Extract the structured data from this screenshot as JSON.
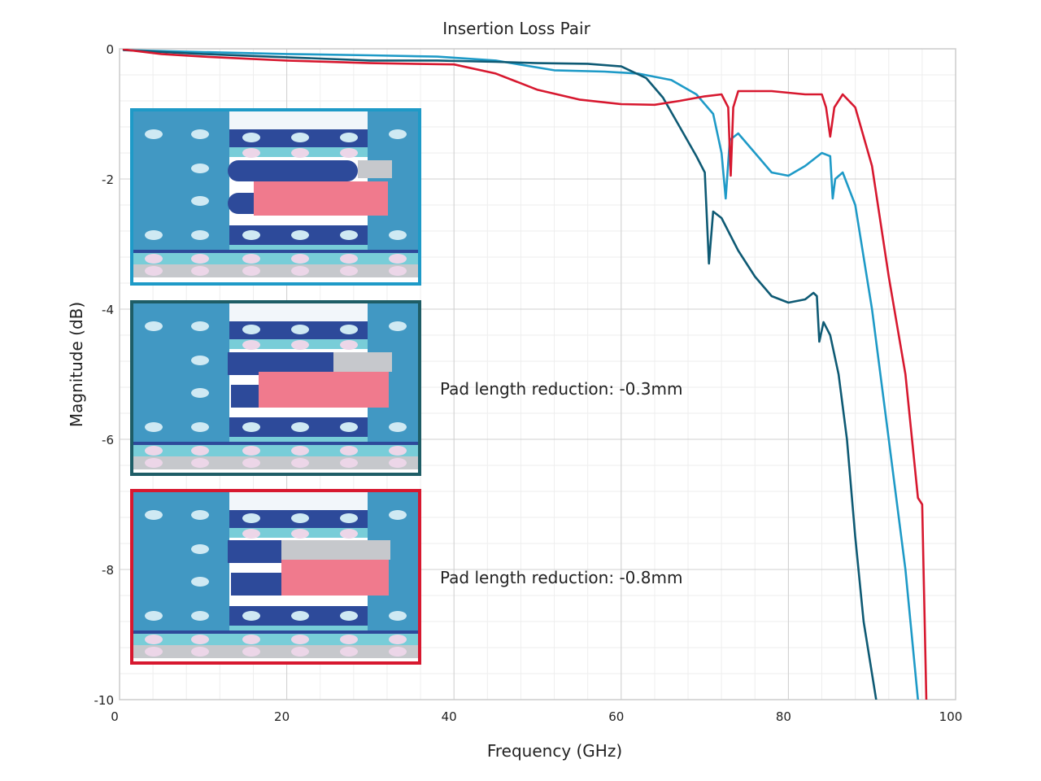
{
  "chart_data": {
    "type": "line",
    "title": "Insertion Loss Pair",
    "xlabel": "Frequency (GHz)",
    "ylabel": "Magnitude (dB)",
    "xlim": [
      0,
      100
    ],
    "ylim": [
      -10,
      0
    ],
    "x_ticks": [
      0,
      20,
      40,
      60,
      80,
      100
    ],
    "y_ticks": [
      0,
      -2,
      -4,
      -6,
      -8,
      -10
    ],
    "grid": true,
    "legend": "none",
    "series": [
      {
        "color": "#1e9ac7",
        "points": [
          [
            0.5,
            -0.02
          ],
          [
            10,
            -0.05
          ],
          [
            20,
            -0.08
          ],
          [
            30,
            -0.1
          ],
          [
            38,
            -0.12
          ],
          [
            45,
            -0.18
          ],
          [
            52,
            -0.33
          ],
          [
            58,
            -0.35
          ],
          [
            62,
            -0.38
          ],
          [
            66,
            -0.48
          ],
          [
            69,
            -0.7
          ],
          [
            71,
            -1.0
          ],
          [
            72,
            -1.6
          ],
          [
            72.5,
            -2.3
          ],
          [
            73,
            -1.4
          ],
          [
            74,
            -1.3
          ],
          [
            76,
            -1.6
          ],
          [
            78,
            -1.9
          ],
          [
            80,
            -1.95
          ],
          [
            82,
            -1.8
          ],
          [
            84,
            -1.6
          ],
          [
            85,
            -1.65
          ],
          [
            85.3,
            -2.3
          ],
          [
            85.6,
            -2.0
          ],
          [
            86.5,
            -1.9
          ],
          [
            88,
            -2.4
          ],
          [
            90,
            -4.0
          ],
          [
            92,
            -6.0
          ],
          [
            94,
            -8.0
          ],
          [
            95.5,
            -10.0
          ]
        ]
      },
      {
        "color": "#0e5a74",
        "points": [
          [
            0.5,
            -0.02
          ],
          [
            10,
            -0.08
          ],
          [
            20,
            -0.13
          ],
          [
            30,
            -0.18
          ],
          [
            38,
            -0.18
          ],
          [
            45,
            -0.2
          ],
          [
            50,
            -0.22
          ],
          [
            56,
            -0.23
          ],
          [
            60,
            -0.27
          ],
          [
            63,
            -0.45
          ],
          [
            65,
            -0.75
          ],
          [
            67,
            -1.2
          ],
          [
            69,
            -1.65
          ],
          [
            70,
            -1.9
          ],
          [
            70.5,
            -3.3
          ],
          [
            71,
            -2.5
          ],
          [
            72,
            -2.6
          ],
          [
            74,
            -3.1
          ],
          [
            76,
            -3.5
          ],
          [
            78,
            -3.8
          ],
          [
            80,
            -3.9
          ],
          [
            82,
            -3.85
          ],
          [
            83,
            -3.75
          ],
          [
            83.4,
            -3.8
          ],
          [
            83.7,
            -4.5
          ],
          [
            84.2,
            -4.2
          ],
          [
            85,
            -4.4
          ],
          [
            86,
            -5.0
          ],
          [
            87,
            -6.0
          ],
          [
            88,
            -7.5
          ],
          [
            89,
            -8.8
          ],
          [
            90.5,
            -10.0
          ]
        ]
      },
      {
        "color": "#d7182f",
        "points": [
          [
            0.5,
            -0.01
          ],
          [
            5,
            -0.08
          ],
          [
            10,
            -0.12
          ],
          [
            20,
            -0.18
          ],
          [
            30,
            -0.22
          ],
          [
            40,
            -0.24
          ],
          [
            45,
            -0.38
          ],
          [
            50,
            -0.63
          ],
          [
            55,
            -0.78
          ],
          [
            60,
            -0.85
          ],
          [
            64,
            -0.86
          ],
          [
            67,
            -0.8
          ],
          [
            70,
            -0.73
          ],
          [
            72,
            -0.7
          ],
          [
            72.8,
            -0.9
          ],
          [
            73.1,
            -1.95
          ],
          [
            73.4,
            -0.9
          ],
          [
            74,
            -0.65
          ],
          [
            78,
            -0.65
          ],
          [
            82,
            -0.7
          ],
          [
            84,
            -0.7
          ],
          [
            84.5,
            -0.9
          ],
          [
            85,
            -1.35
          ],
          [
            85.5,
            -0.9
          ],
          [
            86.5,
            -0.7
          ],
          [
            88,
            -0.9
          ],
          [
            90,
            -1.8
          ],
          [
            92,
            -3.5
          ],
          [
            94,
            -5.0
          ],
          [
            95.5,
            -6.9
          ],
          [
            96,
            -7.0
          ],
          [
            96.5,
            -10.0
          ]
        ]
      }
    ],
    "annotations": [
      {
        "text": "Pad length reduction: -0.3mm",
        "x": 38,
        "y": -5.2
      },
      {
        "text": "Pad length reduction: -0.8mm",
        "x": 38,
        "y": -8.1
      }
    ],
    "inset_frame_colors": [
      "#1e9ac7",
      "#1e5d66",
      "#d7182f"
    ]
  }
}
